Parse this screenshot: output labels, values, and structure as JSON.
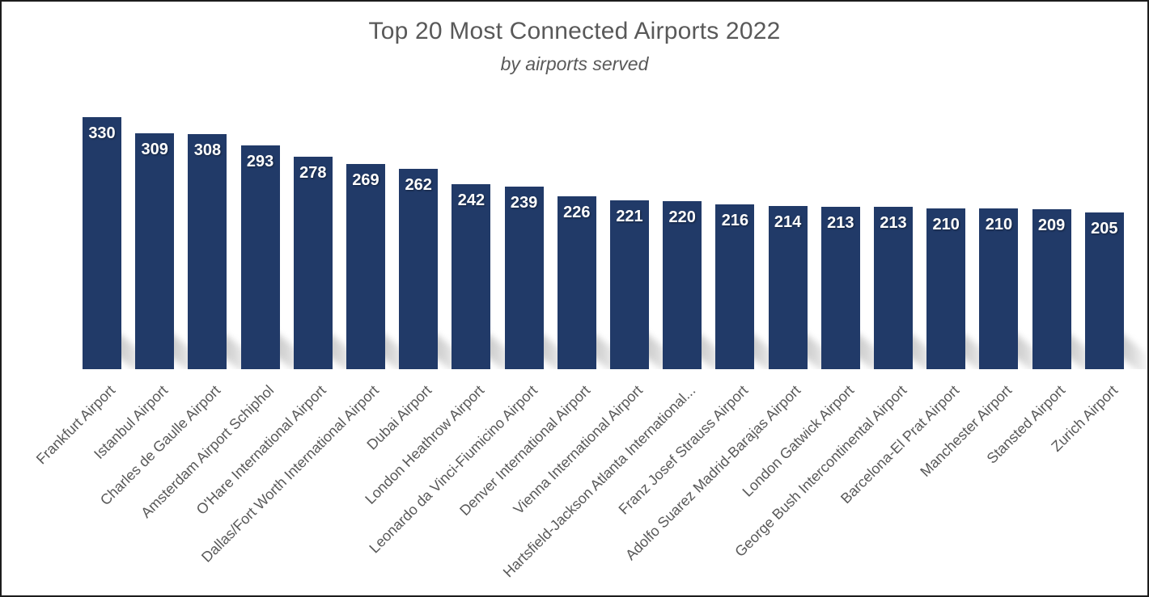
{
  "window": {
    "background": "#FFFFFF",
    "border_color": "#1C1C1C"
  },
  "chart_data": {
    "type": "bar",
    "title": "Top 20 Most Connected Airports 2022",
    "subtitle": "by airports served",
    "categories": [
      "Frankfurt Airport",
      "Istanbul Airport",
      "Charles de Gaulle Airport",
      "Amsterdam Airport Schiphol",
      "O'Hare International Airport",
      "Dallas/Fort Worth International Airport",
      "Dubai Airport",
      "London Heathrow Airport",
      "Leonardo da Vinci-Fiumicino Airport",
      "Denver International Airport",
      "Vienna International Airport",
      "Hartsfield-Jackson Atlanta International...",
      "Franz Josef Strauss Airport",
      "Adolfo Suarez Madrid-Barajas Airport",
      "London Gatwick Airport",
      "George Bush Intercontinental Airport",
      "Barcelona-El Prat Airport",
      "Manchester Airport",
      "Stansted Airport",
      "Zurich Airport"
    ],
    "values": [
      330,
      309,
      308,
      293,
      278,
      269,
      262,
      242,
      239,
      226,
      221,
      220,
      216,
      214,
      213,
      213,
      210,
      210,
      209,
      205
    ],
    "xlabel": "",
    "ylabel": "",
    "ylim": [
      0,
      350
    ],
    "gridlines": false,
    "legend": "none",
    "y_axis_visible": false,
    "x_tick_rotation_deg": -45,
    "value_label_position": "inside_end",
    "colors": {
      "bar": "#213A68",
      "value_label": "#FFFFFF",
      "tick_label": "#595959",
      "title": "#595959",
      "bar_shadow": "#A8A8A8"
    }
  }
}
